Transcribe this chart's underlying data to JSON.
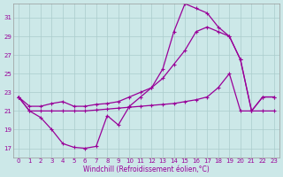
{
  "xlabel": "Windchill (Refroidissement éolien,°C)",
  "background_color": "#cce8e8",
  "grid_color": "#aacccc",
  "line_color": "#990099",
  "xlim": [
    -0.5,
    23.5
  ],
  "ylim": [
    16,
    32.5
  ],
  "yticks": [
    17,
    19,
    21,
    23,
    25,
    27,
    29,
    31
  ],
  "xticks": [
    0,
    1,
    2,
    3,
    4,
    5,
    6,
    7,
    8,
    9,
    10,
    11,
    12,
    13,
    14,
    15,
    16,
    17,
    18,
    19,
    20,
    21,
    22,
    23
  ],
  "curve1_x": [
    0,
    1,
    2,
    3,
    4,
    5,
    6,
    7,
    8,
    9,
    10,
    11,
    12,
    13,
    14,
    15,
    16,
    17,
    18,
    19,
    20,
    21,
    22,
    23
  ],
  "curve1_y": [
    22.5,
    21.0,
    20.3,
    19.0,
    17.5,
    17.1,
    17.0,
    17.2,
    20.5,
    19.5,
    21.5,
    22.5,
    23.5,
    25.5,
    29.5,
    32.5,
    32.0,
    31.5,
    30.0,
    29.0,
    26.5,
    21.0,
    22.5,
    22.5
  ],
  "curve2_x": [
    0,
    1,
    2,
    3,
    4,
    5,
    6,
    7,
    8,
    9,
    10,
    11,
    12,
    13,
    14,
    15,
    16,
    17,
    18,
    19,
    20,
    21,
    22,
    23
  ],
  "curve2_y": [
    22.5,
    21.5,
    21.5,
    21.8,
    22.0,
    21.5,
    21.5,
    21.7,
    21.8,
    22.0,
    22.5,
    23.0,
    23.5,
    24.5,
    26.0,
    27.5,
    29.5,
    30.0,
    29.5,
    29.0,
    26.5,
    21.0,
    22.5,
    22.5
  ],
  "curve3_x": [
    0,
    1,
    2,
    3,
    4,
    5,
    6,
    7,
    8,
    9,
    10,
    11,
    12,
    13,
    14,
    15,
    16,
    17,
    18,
    19,
    20,
    21,
    22,
    23
  ],
  "curve3_y": [
    22.5,
    21.0,
    21.0,
    21.0,
    21.0,
    21.0,
    21.0,
    21.1,
    21.2,
    21.3,
    21.4,
    21.5,
    21.6,
    21.7,
    21.8,
    22.0,
    22.2,
    22.5,
    23.5,
    25.0,
    21.0,
    21.0,
    21.0,
    21.0
  ]
}
